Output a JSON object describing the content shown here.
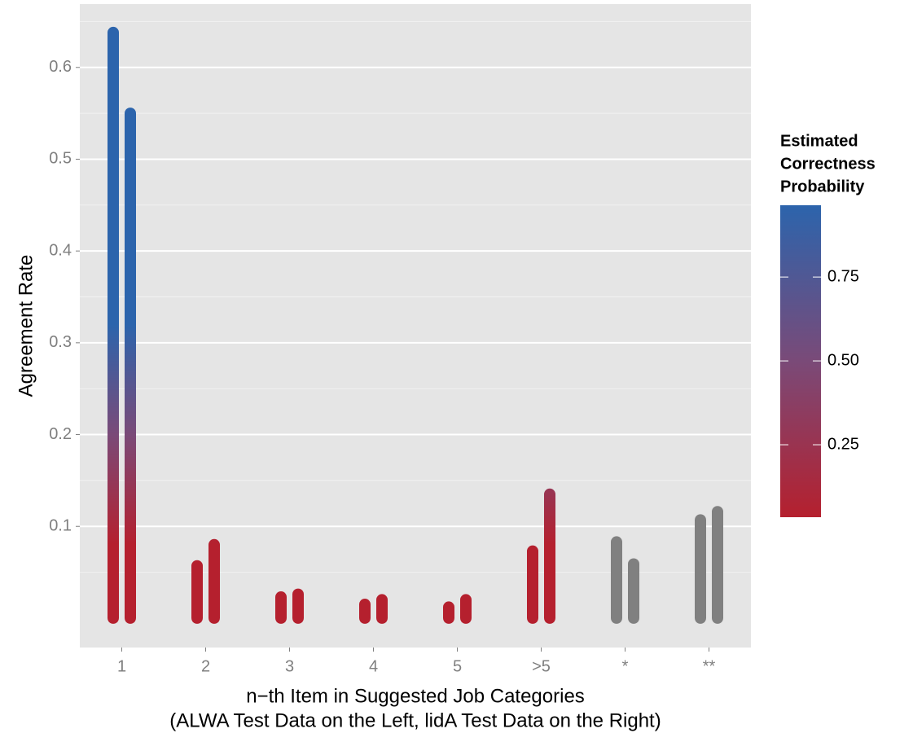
{
  "chart_data": {
    "type": "bar",
    "y_label": "Agreement Rate",
    "x_label": [
      "n−th Item in Suggested Job Categories",
      "(ALWA Test Data on the Left, lidA Test Data on the Right)"
    ],
    "categories": [
      "1",
      "2",
      "3",
      "4",
      "5",
      ">5",
      "*",
      "**"
    ],
    "series": [
      {
        "values": [
          0.638,
          0.057,
          0.023,
          0.015,
          0.012,
          0.073,
          0.083,
          0.107
        ],
        "point_colors": [
          null,
          null,
          null,
          null,
          null,
          null,
          "#808080",
          "#808080"
        ]
      },
      {
        "values": [
          0.55,
          0.08,
          0.026,
          0.02,
          0.02,
          0.135,
          0.059,
          0.116
        ],
        "point_colors": [
          null,
          null,
          null,
          null,
          null,
          null,
          "#808080",
          "#808080"
        ]
      }
    ],
    "ylim": [
      -0.032,
      0.669
    ],
    "yticks": [
      0.1,
      0.2,
      0.3,
      0.4,
      0.5,
      0.6
    ],
    "minor_yticks": [
      0.05,
      0.15,
      0.25,
      0.35,
      0.45,
      0.55,
      0.65
    ],
    "grid": true,
    "colorbar": {
      "title": [
        "Estimated",
        "Correctness",
        "Probability"
      ],
      "lim": [
        0.034,
        0.964
      ],
      "ticks": [
        {
          "value": 0.25,
          "label": "0.25"
        },
        {
          "value": 0.5,
          "label": "0.50"
        },
        {
          "value": 0.75,
          "label": "0.75"
        }
      ],
      "colors": [
        "#b5202e",
        "#7a4a78",
        "#2c64ac"
      ]
    }
  }
}
